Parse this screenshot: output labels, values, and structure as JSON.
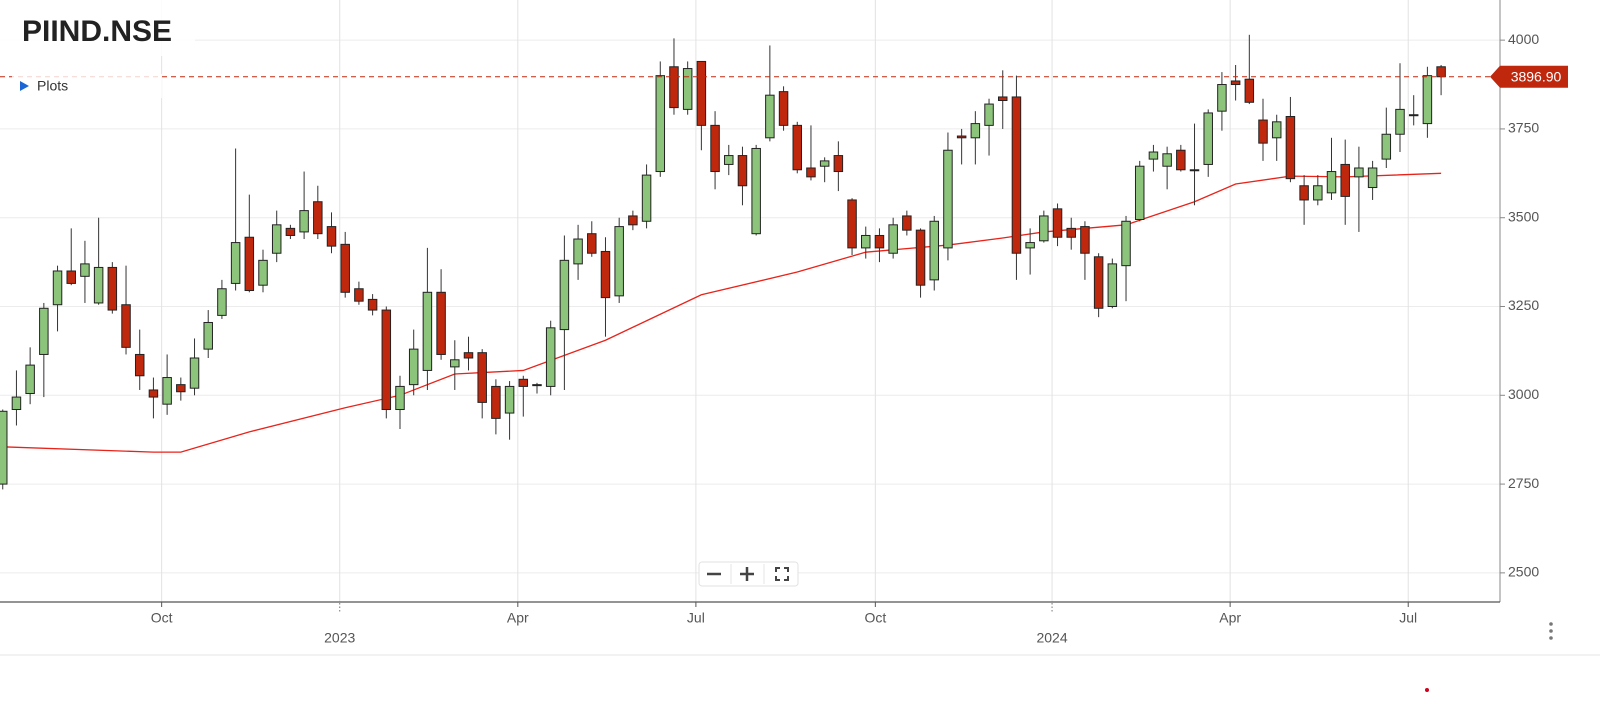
{
  "chart_data": {
    "type": "candlestick",
    "title": "PIIND.NSE",
    "menu_label": "Plots",
    "up_color": "#8cc47c",
    "down_color": "#c0280e",
    "ma_color": "#e8231a",
    "grid": true,
    "xlim": [
      -0.2,
      109.3
    ],
    "ylim": [
      2418,
      4113
    ],
    "yticks": [
      2500,
      2750,
      3000,
      3250,
      3500,
      3750,
      4000
    ],
    "xticks": [
      {
        "value": 11.6,
        "label": "Oct"
      },
      {
        "value": 37.6,
        "label": "Apr"
      },
      {
        "value": 50.6,
        "label": "Jul"
      },
      {
        "value": 63.7,
        "label": "Oct"
      },
      {
        "value": 89.6,
        "label": "Apr"
      },
      {
        "value": 102.6,
        "label": "Jul"
      }
    ],
    "year_ticks": [
      {
        "value": 24.6,
        "label": "2023"
      },
      {
        "value": 76.6,
        "label": "2024"
      }
    ],
    "open": [
      2750,
      2960,
      3005,
      3115,
      3255,
      3350,
      3335,
      3260,
      3360,
      3255,
      3115,
      3015,
      2975,
      3030,
      3020,
      3130,
      3225,
      3315,
      3445,
      3310,
      3400,
      3470,
      3460,
      3545,
      3475,
      3425,
      3300,
      3270,
      3240,
      2960,
      3030,
      3070,
      3290,
      3080,
      3120,
      3120,
      3025,
      2950,
      3045,
      3030,
      3025,
      3185,
      3370,
      3455,
      3405,
      3280,
      3505,
      3490,
      3630,
      3925,
      3805,
      3940,
      3760,
      3650,
      3675,
      3455,
      3725,
      3855,
      3760,
      3640,
      3645,
      3675,
      3550,
      3415,
      3450,
      3400,
      3505,
      3465,
      3325,
      3415,
      3730,
      3725,
      3760,
      3840,
      3840,
      3415,
      3435,
      3525,
      3470,
      3475,
      3390,
      3250,
      3365,
      3495,
      3665,
      3645,
      3690,
      3635,
      3650,
      3800,
      3885,
      3890,
      3775,
      3725,
      3785,
      3590,
      3550,
      3570,
      3650,
      3615,
      3585,
      3665,
      3735,
      3790,
      3765,
      3925
    ],
    "high": [
      2960,
      3070,
      3135,
      3260,
      3365,
      3470,
      3435,
      3500,
      3375,
      3365,
      3185,
      3050,
      3115,
      3050,
      3160,
      3240,
      3325,
      3695,
      3565,
      3410,
      3520,
      3480,
      3630,
      3590,
      3515,
      3460,
      3320,
      3285,
      3250,
      3055,
      3185,
      3415,
      3355,
      3155,
      3165,
      3130,
      3045,
      3040,
      3055,
      3035,
      3210,
      3450,
      3480,
      3490,
      3445,
      3500,
      3520,
      3650,
      3940,
      4005,
      3940,
      3940,
      3800,
      3705,
      3700,
      3705,
      3985,
      3870,
      3770,
      3760,
      3670,
      3715,
      3555,
      3475,
      3470,
      3500,
      3520,
      3470,
      3505,
      3740,
      3750,
      3800,
      3835,
      3915,
      3900,
      3470,
      3520,
      3540,
      3500,
      3490,
      3400,
      3385,
      3505,
      3660,
      3705,
      3700,
      3705,
      3765,
      3805,
      3910,
      3930,
      4015,
      3835,
      3790,
      3840,
      3620,
      3620,
      3725,
      3720,
      3700,
      3660,
      3810,
      3935,
      3845,
      3925,
      3930
    ],
    "low": [
      2735,
      2915,
      2975,
      2995,
      3180,
      3310,
      3260,
      3255,
      3230,
      3115,
      3015,
      2935,
      2945,
      2985,
      3000,
      3105,
      3215,
      3295,
      3290,
      3290,
      3375,
      3440,
      3440,
      3440,
      3400,
      3275,
      3255,
      3225,
      2935,
      2905,
      3000,
      3015,
      3100,
      3015,
      3070,
      2935,
      2890,
      2875,
      2940,
      3005,
      3000,
      3015,
      3325,
      3390,
      3165,
      3260,
      3465,
      3470,
      3615,
      3790,
      3790,
      3690,
      3580,
      3620,
      3535,
      3450,
      3715,
      3745,
      3625,
      3605,
      3600,
      3575,
      3395,
      3385,
      3375,
      3385,
      3450,
      3275,
      3295,
      3380,
      3650,
      3650,
      3675,
      3750,
      3325,
      3340,
      3430,
      3420,
      3410,
      3325,
      3220,
      3245,
      3265,
      3490,
      3630,
      3580,
      3630,
      3535,
      3615,
      3745,
      3830,
      3820,
      3660,
      3660,
      3600,
      3480,
      3535,
      3550,
      3480,
      3460,
      3550,
      3640,
      3685,
      3760,
      3725,
      3845
    ],
    "close": [
      2955,
      2995,
      3085,
      3245,
      3350,
      3315,
      3370,
      3360,
      3240,
      3135,
      3055,
      2995,
      3050,
      3010,
      3105,
      3205,
      3300,
      3430,
      3295,
      3380,
      3480,
      3450,
      3520,
      3455,
      3420,
      3290,
      3265,
      3240,
      2960,
      3025,
      3130,
      3290,
      3115,
      3100,
      3105,
      2980,
      2935,
      3025,
      3025,
      3030,
      3190,
      3380,
      3440,
      3400,
      3275,
      3475,
      3480,
      3620,
      3900,
      3810,
      3920,
      3760,
      3630,
      3675,
      3590,
      3695,
      3845,
      3760,
      3635,
      3615,
      3660,
      3630,
      3415,
      3450,
      3415,
      3480,
      3465,
      3310,
      3490,
      3690,
      3725,
      3765,
      3820,
      3830,
      3400,
      3430,
      3505,
      3445,
      3445,
      3400,
      3245,
      3370,
      3490,
      3645,
      3685,
      3680,
      3635,
      3635,
      3795,
      3875,
      3875,
      3825,
      3710,
      3770,
      3610,
      3550,
      3590,
      3630,
      3560,
      3640,
      3640,
      3735,
      3805,
      3790,
      3900,
      3896.9
    ],
    "ma": {
      "x": [
        0,
        11,
        13,
        18,
        25,
        29,
        33,
        38,
        44,
        51,
        58,
        63,
        69,
        73,
        76,
        82,
        87,
        90,
        94,
        98,
        105
      ],
      "values": [
        2855,
        2840,
        2840,
        2897,
        2965,
        3000,
        3060,
        3070,
        3155,
        3283,
        3347,
        3403,
        3423,
        3443,
        3460,
        3480,
        3545,
        3595,
        3617,
        3615,
        3625
      ]
    },
    "last_price": 3896.9,
    "last_price_label": "3896.90"
  }
}
